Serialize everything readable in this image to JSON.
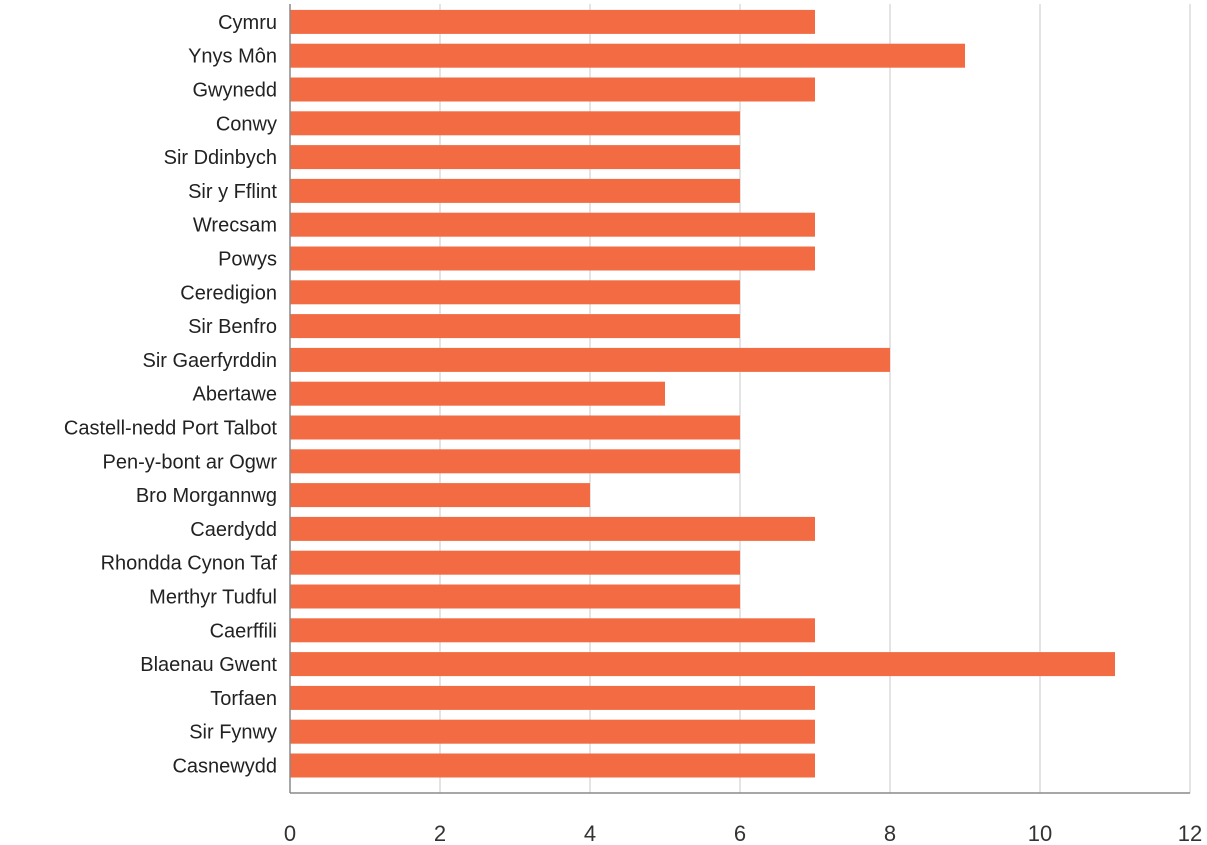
{
  "chart_data": {
    "type": "bar",
    "orientation": "horizontal",
    "title": "",
    "xlabel": "",
    "ylabel": "",
    "categories": [
      "Cymru",
      "Ynys Môn",
      "Gwynedd",
      "Conwy",
      "Sir Ddinbych",
      "Sir y Fflint",
      "Wrecsam",
      "Powys",
      "Ceredigion",
      "Sir Benfro",
      "Sir Gaerfyrddin",
      "Abertawe",
      "Castell-nedd Port Talbot",
      "Pen-y-bont ar Ogwr",
      "Bro Morgannwg",
      "Caerdydd",
      "Rhondda Cynon Taf",
      "Merthyr Tudful",
      "Caerffili",
      "Blaenau Gwent",
      "Torfaen",
      "Sir Fynwy",
      "Casnewydd"
    ],
    "values": [
      7,
      9,
      7,
      6,
      6,
      6,
      7,
      7,
      6,
      6,
      8,
      5,
      6,
      6,
      4,
      7,
      6,
      6,
      7,
      11,
      7,
      7,
      7
    ],
    "xlim": [
      0,
      12
    ],
    "x_ticks": [
      0,
      2,
      4,
      6,
      8,
      10,
      12
    ],
    "x_tick_labels": [
      "0",
      "2",
      "4",
      "6",
      "8",
      "10",
      "12"
    ],
    "grid": "vertical",
    "legend": "none",
    "bar_color": "#F26B43"
  }
}
